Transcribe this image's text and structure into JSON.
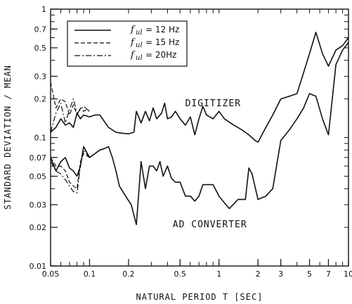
{
  "chart_data": {
    "type": "line",
    "xlabel": "NATURAL PERIOD  T [SEC]",
    "ylabel": "STANDARD DEVIATION / MEAN",
    "xscale": "log",
    "yscale": "log",
    "xlim": [
      0.05,
      10
    ],
    "ylim": [
      0.01,
      1
    ],
    "xtick_labels": [
      "0.05",
      "0.1",
      "0.2",
      "0.5",
      "1",
      "2",
      "3",
      "5",
      "7",
      "10"
    ],
    "xtick_values": [
      0.05,
      0.1,
      0.2,
      0.5,
      1,
      2,
      3,
      5,
      7,
      10
    ],
    "ytick_labels": [
      "0.01",
      "0.02",
      "0.03",
      "0.05",
      "0.07",
      "0.1",
      "0.2",
      "0.3",
      "0.5",
      "0.7",
      "1"
    ],
    "ytick_values": [
      0.01,
      0.02,
      0.03,
      0.05,
      0.07,
      0.1,
      0.2,
      0.3,
      0.5,
      0.7,
      1
    ],
    "legend": {
      "placement": "top-left",
      "entries": [
        {
          "prefix": "f",
          "sub": "ul",
          "text": "= 12 Hz",
          "style": "solid"
        },
        {
          "prefix": "f",
          "sub": "ul",
          "text": "= 15 Hz",
          "style": "dashed"
        },
        {
          "prefix": "f",
          "sub": "ul",
          "text": "= 20Hz",
          "style": "dashdot"
        }
      ]
    },
    "annotations": [
      {
        "text": "DIGITIZER",
        "x": 0.9,
        "y": 0.175
      },
      {
        "text": "AD CONVERTER",
        "x": 0.85,
        "y": 0.02
      }
    ],
    "series": [
      {
        "group": "DIGITIZER",
        "style": "solid",
        "points": [
          [
            0.05,
            0.11
          ],
          [
            0.055,
            0.12
          ],
          [
            0.06,
            0.14
          ],
          [
            0.065,
            0.125
          ],
          [
            0.07,
            0.13
          ],
          [
            0.075,
            0.12
          ],
          [
            0.08,
            0.155
          ],
          [
            0.085,
            0.14
          ],
          [
            0.09,
            0.15
          ],
          [
            0.1,
            0.145
          ],
          [
            0.11,
            0.15
          ],
          [
            0.12,
            0.15
          ],
          [
            0.14,
            0.12
          ],
          [
            0.16,
            0.11
          ],
          [
            0.18,
            0.108
          ],
          [
            0.2,
            0.107
          ],
          [
            0.22,
            0.11
          ],
          [
            0.23,
            0.16
          ],
          [
            0.25,
            0.13
          ],
          [
            0.27,
            0.16
          ],
          [
            0.29,
            0.135
          ],
          [
            0.31,
            0.17
          ],
          [
            0.33,
            0.14
          ],
          [
            0.36,
            0.155
          ],
          [
            0.38,
            0.185
          ],
          [
            0.4,
            0.14
          ],
          [
            0.43,
            0.145
          ],
          [
            0.46,
            0.16
          ],
          [
            0.5,
            0.14
          ],
          [
            0.55,
            0.125
          ],
          [
            0.6,
            0.145
          ],
          [
            0.65,
            0.105
          ],
          [
            0.7,
            0.14
          ],
          [
            0.75,
            0.175
          ],
          [
            0.8,
            0.15
          ],
          [
            0.9,
            0.14
          ],
          [
            1.0,
            0.16
          ],
          [
            1.1,
            0.14
          ],
          [
            1.3,
            0.125
          ],
          [
            1.5,
            0.115
          ],
          [
            1.7,
            0.105
          ],
          [
            1.9,
            0.095
          ],
          [
            2.0,
            0.092
          ],
          [
            2.3,
            0.12
          ],
          [
            2.6,
            0.15
          ],
          [
            3.0,
            0.2
          ],
          [
            3.5,
            0.21
          ],
          [
            4.0,
            0.22
          ],
          [
            4.5,
            0.32
          ],
          [
            5.0,
            0.45
          ],
          [
            5.6,
            0.66
          ],
          [
            6.3,
            0.45
          ],
          [
            7.0,
            0.36
          ],
          [
            8.0,
            0.48
          ],
          [
            9.0,
            0.52
          ],
          [
            10.0,
            0.6
          ]
        ]
      },
      {
        "group": "DIGITIZER",
        "style": "dashed",
        "points": [
          [
            0.05,
            0.27
          ],
          [
            0.055,
            0.17
          ],
          [
            0.06,
            0.2
          ],
          [
            0.065,
            0.19
          ],
          [
            0.07,
            0.15
          ],
          [
            0.075,
            0.18
          ],
          [
            0.08,
            0.15
          ],
          [
            0.085,
            0.17
          ],
          [
            0.09,
            0.16
          ],
          [
            0.095,
            0.165
          ],
          [
            0.1,
            0.16
          ]
        ]
      },
      {
        "group": "DIGITIZER",
        "style": "dashdot",
        "points": [
          [
            0.05,
            0.11
          ],
          [
            0.055,
            0.155
          ],
          [
            0.06,
            0.185
          ],
          [
            0.065,
            0.13
          ],
          [
            0.07,
            0.165
          ],
          [
            0.075,
            0.2
          ],
          [
            0.08,
            0.155
          ],
          [
            0.085,
            0.165
          ],
          [
            0.09,
            0.175
          ],
          [
            0.1,
            0.16
          ]
        ]
      },
      {
        "group": "AD CONVERTER",
        "style": "solid",
        "points": [
          [
            0.05,
            0.07
          ],
          [
            0.055,
            0.055
          ],
          [
            0.06,
            0.065
          ],
          [
            0.065,
            0.07
          ],
          [
            0.07,
            0.058
          ],
          [
            0.075,
            0.055
          ],
          [
            0.08,
            0.05
          ],
          [
            0.085,
            0.06
          ],
          [
            0.09,
            0.085
          ],
          [
            0.1,
            0.07
          ],
          [
            0.11,
            0.075
          ],
          [
            0.12,
            0.08
          ],
          [
            0.13,
            0.082
          ],
          [
            0.14,
            0.085
          ],
          [
            0.15,
            0.07
          ],
          [
            0.16,
            0.055
          ],
          [
            0.17,
            0.042
          ],
          [
            0.19,
            0.035
          ],
          [
            0.21,
            0.03
          ],
          [
            0.23,
            0.021
          ],
          [
            0.25,
            0.065
          ],
          [
            0.27,
            0.04
          ],
          [
            0.29,
            0.06
          ],
          [
            0.31,
            0.06
          ],
          [
            0.33,
            0.055
          ],
          [
            0.35,
            0.065
          ],
          [
            0.37,
            0.05
          ],
          [
            0.4,
            0.06
          ],
          [
            0.43,
            0.048
          ],
          [
            0.46,
            0.045
          ],
          [
            0.5,
            0.045
          ],
          [
            0.55,
            0.035
          ],
          [
            0.6,
            0.035
          ],
          [
            0.65,
            0.032
          ],
          [
            0.7,
            0.035
          ],
          [
            0.75,
            0.043
          ],
          [
            0.8,
            0.043
          ],
          [
            0.9,
            0.043
          ],
          [
            1.0,
            0.035
          ],
          [
            1.1,
            0.031
          ],
          [
            1.2,
            0.028
          ],
          [
            1.4,
            0.033
          ],
          [
            1.6,
            0.033
          ],
          [
            1.7,
            0.058
          ],
          [
            1.8,
            0.052
          ],
          [
            2.0,
            0.033
          ],
          [
            2.3,
            0.035
          ],
          [
            2.6,
            0.04
          ],
          [
            3.0,
            0.095
          ],
          [
            3.5,
            0.115
          ],
          [
            4.0,
            0.14
          ],
          [
            4.5,
            0.17
          ],
          [
            5.0,
            0.22
          ],
          [
            5.6,
            0.21
          ],
          [
            6.3,
            0.14
          ],
          [
            7.0,
            0.105
          ],
          [
            8.0,
            0.37
          ],
          [
            9.0,
            0.48
          ],
          [
            10.0,
            0.55
          ]
        ]
      },
      {
        "group": "AD CONVERTER",
        "style": "dashed",
        "points": [
          [
            0.05,
            0.07
          ],
          [
            0.055,
            0.06
          ],
          [
            0.06,
            0.06
          ],
          [
            0.065,
            0.055
          ],
          [
            0.07,
            0.045
          ],
          [
            0.075,
            0.042
          ],
          [
            0.08,
            0.04
          ],
          [
            0.085,
            0.065
          ],
          [
            0.09,
            0.075
          ],
          [
            0.1,
            0.07
          ]
        ]
      },
      {
        "group": "AD CONVERTER",
        "style": "dashdot",
        "points": [
          [
            0.05,
            0.065
          ],
          [
            0.055,
            0.055
          ],
          [
            0.06,
            0.052
          ],
          [
            0.065,
            0.047
          ],
          [
            0.07,
            0.042
          ],
          [
            0.075,
            0.038
          ],
          [
            0.08,
            0.037
          ],
          [
            0.085,
            0.06
          ],
          [
            0.09,
            0.08
          ],
          [
            0.1,
            0.07
          ]
        ]
      }
    ]
  }
}
